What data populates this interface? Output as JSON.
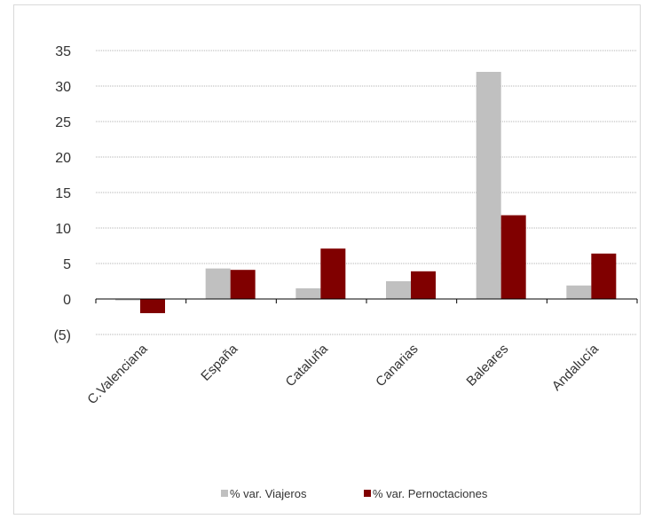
{
  "chart_data": {
    "type": "bar",
    "categories": [
      "C.Valenciana",
      "España",
      "Cataluña",
      "Canarias",
      "Baleares",
      "Andalucía"
    ],
    "series": [
      {
        "name": "% var. Viajeros",
        "color": "#c0c0c0",
        "values": [
          -0.2,
          4.3,
          1.5,
          2.5,
          32.0,
          1.9
        ]
      },
      {
        "name": "% var. Pernoctaciones",
        "color": "#800000",
        "values": [
          -2.0,
          4.1,
          7.1,
          3.9,
          11.8,
          6.4
        ]
      }
    ],
    "yticks": [
      {
        "value": 35,
        "label": "35",
        "color": "#333333"
      },
      {
        "value": 30,
        "label": "30",
        "color": "#333333"
      },
      {
        "value": 25,
        "label": "25",
        "color": "#333333"
      },
      {
        "value": 20,
        "label": "20",
        "color": "#333333"
      },
      {
        "value": 15,
        "label": "15",
        "color": "#333333"
      },
      {
        "value": 10,
        "label": "10",
        "color": "#333333"
      },
      {
        "value": 5,
        "label": "5",
        "color": "#333333"
      },
      {
        "value": 0,
        "label": "0",
        "color": "#333333"
      },
      {
        "value": -5,
        "label": "(5)",
        "color": "#ff0000"
      }
    ],
    "ylim": [
      -5,
      35
    ],
    "grid": true,
    "legend": "bottom-center",
    "title": "",
    "xlabel": "",
    "ylabel": ""
  }
}
